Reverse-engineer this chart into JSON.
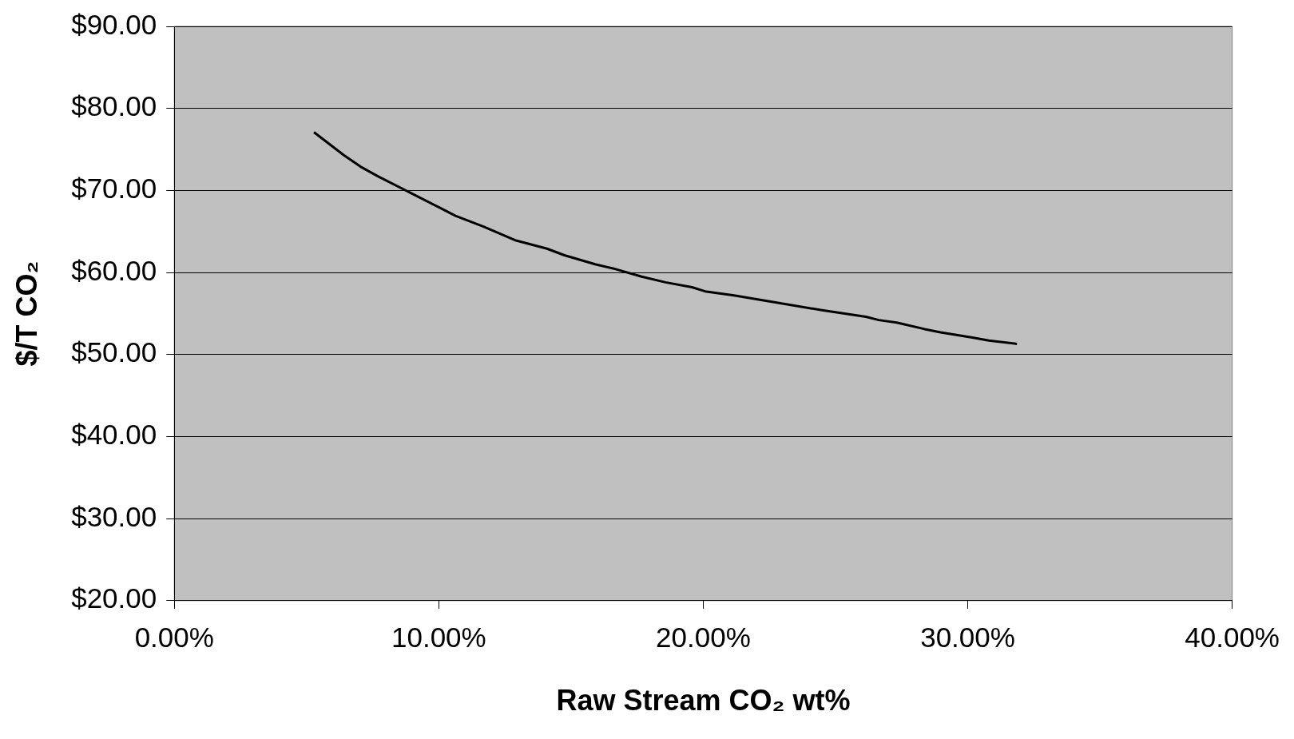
{
  "chart_data": {
    "type": "line",
    "xlabel": "Raw Stream CO₂ wt%",
    "ylabel": "$/T CO₂",
    "x": [
      5.28,
      6.41,
      7.04,
      7.71,
      8.87,
      10.03,
      10.63,
      11.69,
      12.92,
      14.09,
      14.75,
      15.91,
      16.58,
      17.67,
      18.57,
      19.57,
      20.07,
      21.16,
      22.82,
      24.49,
      26.15,
      26.64,
      27.31,
      28.37,
      28.97,
      30.13,
      30.8,
      31.86
    ],
    "series": [
      {
        "color": "#000000",
        "values": [
          77.1,
          74.3,
          72.9,
          71.7,
          69.8,
          67.9,
          66.9,
          65.6,
          63.9,
          62.9,
          62.1,
          61.0,
          60.5,
          59.5,
          58.8,
          58.2,
          57.7,
          57.2,
          56.3,
          55.4,
          54.6,
          54.2,
          53.9,
          53.1,
          52.7,
          52.1,
          51.7,
          51.3
        ]
      }
    ],
    "xlim": [
      0,
      40
    ],
    "xticks": [
      {
        "value": 0,
        "label": "0.00%"
      },
      {
        "value": 10,
        "label": "10.00%"
      },
      {
        "value": 20,
        "label": "20.00%"
      },
      {
        "value": 30,
        "label": "30.00%"
      },
      {
        "value": 40,
        "label": "40.00%"
      }
    ],
    "ylim": [
      20,
      90
    ],
    "yticks": [
      {
        "value": 20,
        "label": "$20.00"
      },
      {
        "value": 30,
        "label": "$30.00"
      },
      {
        "value": 40,
        "label": "$40.00"
      },
      {
        "value": 50,
        "label": "$50.00"
      },
      {
        "value": 60,
        "label": "$60.00"
      },
      {
        "value": 70,
        "label": "$70.00"
      },
      {
        "value": 80,
        "label": "$80.00"
      },
      {
        "value": 90,
        "label": "$90.00"
      }
    ],
    "grid": "y",
    "legend": false,
    "marker": "none",
    "line_style": "solid"
  }
}
